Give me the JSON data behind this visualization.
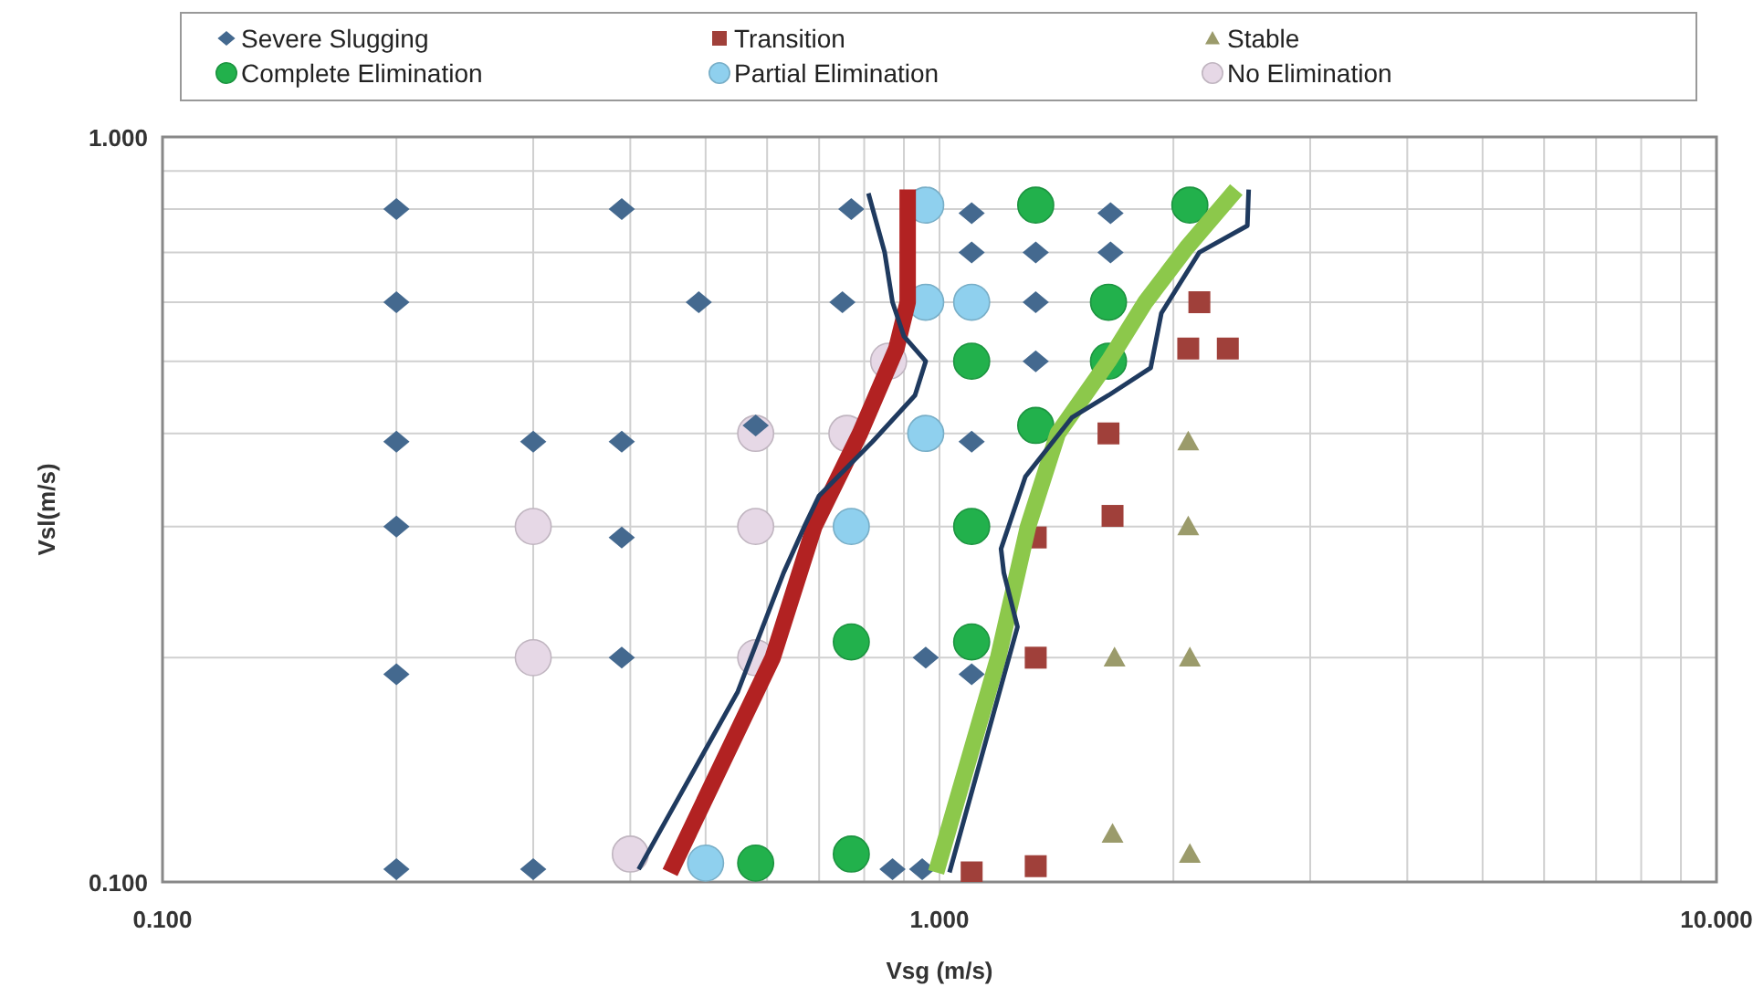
{
  "chart_data": {
    "type": "scatter",
    "xlabel": "Vsg (m/s)",
    "ylabel": "Vsl(m/s)",
    "log": "xy",
    "grid": true,
    "legend": "top",
    "xlim": [
      0.1,
      10
    ],
    "ylim": [
      0.1,
      1
    ],
    "xticks": [
      {
        "value": 0.1,
        "label": "0.100"
      },
      {
        "value": 0.2,
        "label": null
      },
      {
        "value": 0.3,
        "label": null
      },
      {
        "value": 0.4,
        "label": null
      },
      {
        "value": 0.5,
        "label": null
      },
      {
        "value": 0.6,
        "label": null
      },
      {
        "value": 0.7,
        "label": null
      },
      {
        "value": 0.8,
        "label": null
      },
      {
        "value": 0.9,
        "label": null
      },
      {
        "value": 1,
        "label": "1.000"
      },
      {
        "value": 2,
        "label": null
      },
      {
        "value": 3,
        "label": null
      },
      {
        "value": 4,
        "label": null
      },
      {
        "value": 5,
        "label": null
      },
      {
        "value": 6,
        "label": null
      },
      {
        "value": 7,
        "label": null
      },
      {
        "value": 8,
        "label": null
      },
      {
        "value": 9,
        "label": null
      },
      {
        "value": 10,
        "label": "10.000"
      }
    ],
    "yticks": [
      {
        "value": 0.1,
        "label": "0.100"
      },
      {
        "value": 0.2,
        "label": null
      },
      {
        "value": 0.3,
        "label": null
      },
      {
        "value": 0.4,
        "label": null
      },
      {
        "value": 0.5,
        "label": null
      },
      {
        "value": 0.6,
        "label": null
      },
      {
        "value": 0.7,
        "label": null
      },
      {
        "value": 0.8,
        "label": null
      },
      {
        "value": 0.9,
        "label": null
      },
      {
        "value": 1,
        "label": "1.000"
      }
    ],
    "series": [
      {
        "type": "line",
        "color": "#b22222",
        "marker": "none",
        "x": [
          0.45,
          0.61,
          0.69,
          0.79,
          0.88,
          0.91,
          0.91
        ],
        "values": [
          0.103,
          0.2,
          0.3,
          0.4,
          0.52,
          0.6,
          0.85
        ]
      },
      {
        "type": "line",
        "color": "#1f3a5f",
        "marker": "none",
        "x": [
          0.41,
          0.55,
          0.63,
          0.67,
          0.7,
          0.82,
          0.93,
          0.96,
          0.9,
          0.87,
          0.85,
          0.81
        ],
        "values": [
          0.104,
          0.18,
          0.26,
          0.3,
          0.33,
          0.39,
          0.45,
          0.5,
          0.54,
          0.6,
          0.7,
          0.84
        ]
      },
      {
        "type": "line",
        "color": "#8cc84b",
        "marker": "none",
        "x": [
          0.99,
          1.19,
          1.3,
          1.42,
          1.65,
          1.84,
          2.08,
          2.41
        ],
        "values": [
          0.103,
          0.2,
          0.3,
          0.4,
          0.5,
          0.6,
          0.71,
          0.85
        ]
      },
      {
        "type": "line",
        "color": "#1f3a5f",
        "marker": "none",
        "x": [
          1.03,
          1.26,
          1.21,
          1.2,
          1.29,
          1.48,
          1.65,
          1.87,
          1.93,
          2.16,
          2.49,
          2.5
        ],
        "values": [
          0.103,
          0.22,
          0.26,
          0.28,
          0.35,
          0.42,
          0.45,
          0.49,
          0.58,
          0.7,
          0.76,
          0.85
        ]
      },
      {
        "name": "Severe Slugging",
        "color": "#44698f",
        "marker": "diamond",
        "x": [
          0.2,
          0.39,
          0.77,
          1.1,
          1.66,
          1.1,
          1.33,
          1.66,
          0.2,
          0.49,
          0.75,
          1.33,
          1.33,
          0.2,
          0.3,
          0.39,
          0.58,
          1.1,
          0.2,
          0.39,
          0.2,
          0.39,
          0.96,
          1.1,
          0.2,
          0.3,
          0.87,
          0.95
        ],
        "values": [
          0.8,
          0.8,
          0.8,
          0.79,
          0.79,
          0.7,
          0.7,
          0.7,
          0.6,
          0.6,
          0.6,
          0.6,
          0.5,
          0.39,
          0.39,
          0.39,
          0.41,
          0.39,
          0.3,
          0.29,
          0.19,
          0.2,
          0.2,
          0.19,
          0.104,
          0.104,
          0.104,
          0.104
        ]
      },
      {
        "name": "Transition",
        "color": "#a0403a",
        "marker": "square",
        "x": [
          2.16,
          2.09,
          2.35,
          1.65,
          1.67,
          1.33,
          1.33,
          1.1,
          1.33
        ],
        "values": [
          0.6,
          0.52,
          0.52,
          0.4,
          0.31,
          0.29,
          0.2,
          0.103,
          0.105
        ]
      },
      {
        "name": "Stable",
        "color": "#9b9b6b",
        "marker": "triangle",
        "x": [
          2.09,
          2.09,
          1.68,
          2.1,
          1.67,
          2.1
        ],
        "values": [
          0.39,
          0.3,
          0.2,
          0.2,
          0.116,
          0.109
        ]
      },
      {
        "name": "Complete Elimination",
        "color": "#22b14c",
        "marker": "circle",
        "x": [
          1.33,
          2.1,
          1.65,
          1.1,
          1.65,
          1.33,
          1.1,
          1.1,
          0.77,
          0.58,
          0.77
        ],
        "values": [
          0.81,
          0.81,
          0.6,
          0.5,
          0.5,
          0.41,
          0.3,
          0.21,
          0.21,
          0.106,
          0.109
        ]
      },
      {
        "name": "Partial Elimination",
        "color": "#8fd0ee",
        "marker": "circle",
        "x": [
          0.96,
          0.96,
          1.1,
          0.96,
          0.77,
          0.5
        ],
        "values": [
          0.81,
          0.6,
          0.6,
          0.4,
          0.3,
          0.106
        ]
      },
      {
        "name": "No Elimination",
        "color": "#e6d8e6",
        "marker": "circle",
        "x": [
          0.86,
          0.58,
          0.76,
          0.3,
          0.58,
          0.3,
          0.58,
          0.4
        ],
        "values": [
          0.5,
          0.4,
          0.4,
          0.3,
          0.3,
          0.2,
          0.2,
          0.109
        ]
      }
    ]
  }
}
